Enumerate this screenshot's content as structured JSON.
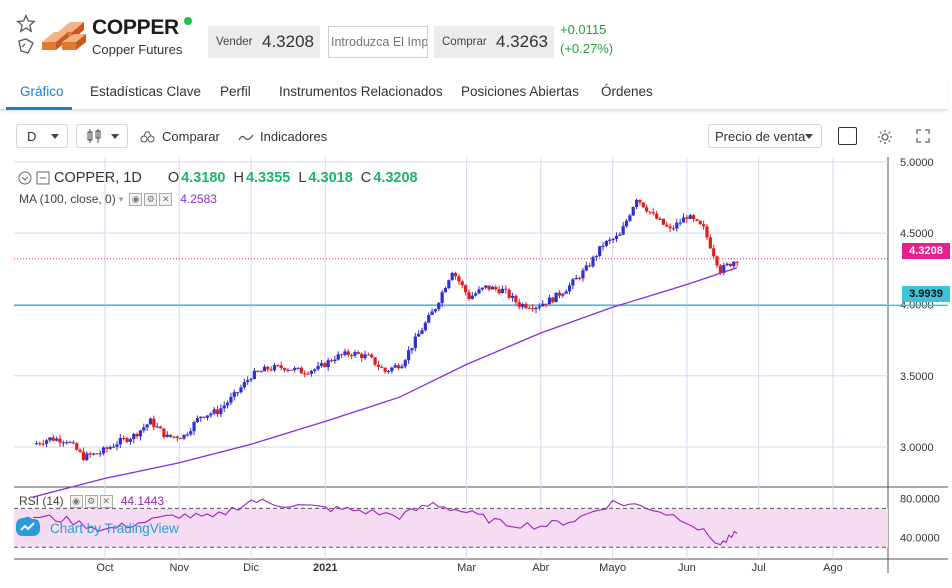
{
  "header": {
    "title": "COPPER",
    "subtitle": "Copper Futures",
    "sell_label": "Vender",
    "sell_value": "4.3208",
    "quantity_placeholder": "Introduzca El Imp",
    "buy_label": "Comprar",
    "buy_value": "4.3263",
    "change_abs": "+0.0115",
    "change_pct": "(+0.27%)"
  },
  "tabs": [
    {
      "label": "Gráfico",
      "active": true
    },
    {
      "label": "Estadísticas Clave"
    },
    {
      "label": "Perfil"
    },
    {
      "label": "Instrumentos Relacionados"
    },
    {
      "label": "Posiciones Abiertas"
    },
    {
      "label": "Órdenes"
    }
  ],
  "toolbar": {
    "interval": "D",
    "compare_label": "Comparar",
    "indicators_label": "Indicadores",
    "price_type": "Precio de venta"
  },
  "legend": {
    "symbol": "COPPER, 1D",
    "open_key": "O",
    "open": "4.3180",
    "high_key": "H",
    "high": "4.3355",
    "low_key": "L",
    "low": "4.3018",
    "close_key": "C",
    "close": "4.3208",
    "ma_label": "MA (100, close, 0)",
    "ma_value": "4.2583",
    "rsi_label": "RSI (14)",
    "rsi_value": "44.1443"
  },
  "price_tags": {
    "current": "4.3208",
    "line": "3.9939"
  },
  "watermark": "Chart by TradingView",
  "colors": {
    "up": "#2f2fd6",
    "down": "#e01e1e",
    "ma": "#8a2be2",
    "rsi": "#a020c0",
    "rsi_band": "#f6dcf3",
    "current_tag": "#e91e8c",
    "hline": "#3bc3d6",
    "accent": "#1a7fc1"
  },
  "chart_data": [
    {
      "type": "line",
      "title": "COPPER, 1D",
      "x_ticks": [
        "Oct",
        "Nov",
        "Dic",
        "2021",
        "Mar",
        "Abr",
        "Mayo",
        "Jun",
        "Jul",
        "Ago"
      ],
      "y_ticks": [
        3.0,
        3.5,
        4.0,
        4.5,
        5.0
      ],
      "ylim": [
        2.72,
        5.02
      ],
      "grid": true,
      "series": [
        {
          "name": "COPPER",
          "x": [
            "2020-09-01",
            "2020-09-08",
            "2020-09-15",
            "2020-09-22",
            "2020-09-29",
            "2020-10-06",
            "2020-10-13",
            "2020-10-20",
            "2020-10-27",
            "2020-11-03",
            "2020-11-10",
            "2020-11-17",
            "2020-11-24",
            "2020-12-01",
            "2020-12-08",
            "2020-12-15",
            "2020-12-22",
            "2020-12-29",
            "2021-01-05",
            "2021-01-12",
            "2021-01-19",
            "2021-01-26",
            "2021-02-02",
            "2021-02-09",
            "2021-02-16",
            "2021-02-23",
            "2021-03-02",
            "2021-03-09",
            "2021-03-16",
            "2021-03-23",
            "2021-03-30",
            "2021-04-06",
            "2021-04-13",
            "2021-04-20",
            "2021-04-27",
            "2021-05-04",
            "2021-05-11",
            "2021-05-18",
            "2021-05-25",
            "2021-06-01",
            "2021-06-08",
            "2021-06-15",
            "2021-06-22"
          ],
          "values": [
            3.02,
            3.06,
            3.05,
            2.93,
            2.96,
            3.03,
            3.08,
            3.18,
            3.07,
            3.08,
            3.22,
            3.25,
            3.36,
            3.5,
            3.55,
            3.56,
            3.53,
            3.55,
            3.63,
            3.66,
            3.63,
            3.53,
            3.59,
            3.79,
            3.98,
            4.24,
            4.05,
            4.12,
            4.1,
            4.0,
            3.99,
            4.04,
            4.13,
            4.25,
            4.42,
            4.48,
            4.75,
            4.62,
            4.52,
            4.62,
            4.53,
            4.24,
            4.32
          ]
        },
        {
          "name": "MA (100, close, 0)",
          "x": [
            "2020-09-01",
            "2020-10-01",
            "2020-11-01",
            "2020-12-01",
            "2021-01-01",
            "2021-02-01",
            "2021-03-01",
            "2021-04-01",
            "2021-05-01",
            "2021-06-01",
            "2021-06-22"
          ],
          "values": [
            2.65,
            2.78,
            2.89,
            3.02,
            3.18,
            3.35,
            3.58,
            3.8,
            3.98,
            4.14,
            4.2583
          ]
        }
      ],
      "hlines": [
        4.3208,
        3.9939
      ]
    },
    {
      "type": "line",
      "title": "RSI (14)",
      "y_ticks": [
        40,
        80
      ],
      "bands": [
        30,
        70
      ],
      "series": [
        {
          "name": "RSI (14)",
          "x": [
            "2020-09-01",
            "2020-09-15",
            "2020-10-01",
            "2020-10-15",
            "2020-11-01",
            "2020-11-15",
            "2020-12-01",
            "2020-12-15",
            "2021-01-01",
            "2021-01-15",
            "2021-02-01",
            "2021-02-15",
            "2021-03-01",
            "2021-03-15",
            "2021-04-01",
            "2021-04-15",
            "2021-05-01",
            "2021-05-15",
            "2021-06-01",
            "2021-06-15",
            "2021-06-22"
          ],
          "values": [
            62,
            58,
            48,
            55,
            63,
            60,
            78,
            74,
            70,
            68,
            62,
            75,
            66,
            55,
            52,
            58,
            76,
            72,
            58,
            33,
            44.1443
          ]
        }
      ]
    }
  ]
}
